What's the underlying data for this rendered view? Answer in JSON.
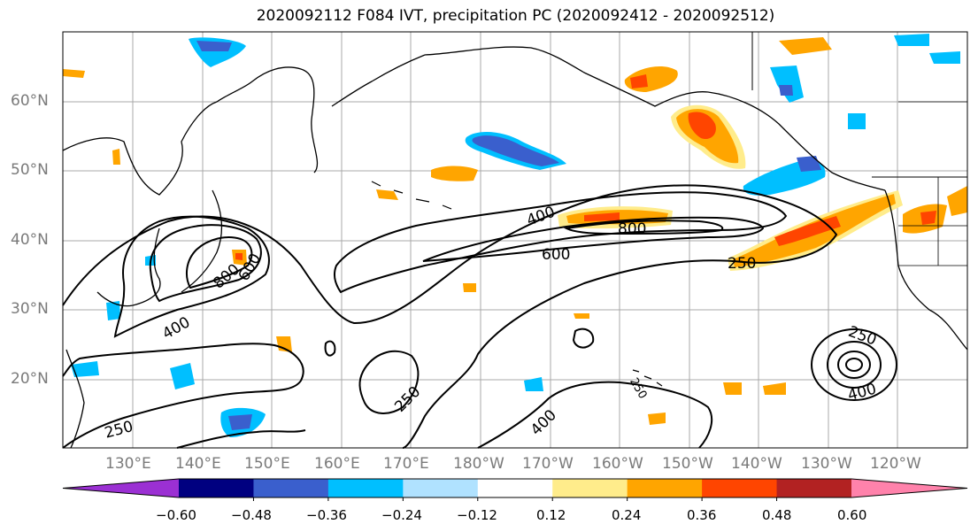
{
  "title": "2020092112 F084 IVT, precipitation PC (2020092412 - 2020092512)",
  "lat_labels": [
    "60°N",
    "50°N",
    "40°N",
    "30°N",
    "20°N"
  ],
  "lon_labels": [
    "130°E",
    "140°E",
    "150°E",
    "160°E",
    "170°E",
    "180°W",
    "170°W",
    "160°W",
    "150°W",
    "140°W",
    "130°W",
    "120°W"
  ],
  "colorbar": {
    "ticks": [
      "−0.60",
      "−0.48",
      "−0.36",
      "−0.24",
      "−0.12",
      "0.12",
      "0.24",
      "0.36",
      "0.48",
      "0.60"
    ],
    "colors": [
      "#9b30d3",
      "#000080",
      "#3a5fcd",
      "#00bfff",
      "#b0e2ff",
      "#ffffff",
      "#ffec8b",
      "#ffa500",
      "#ff4500",
      "#b22222",
      "#ff82ab"
    ]
  },
  "contour_labels": [
    "400",
    "800",
    "600",
    "250",
    "800",
    "600",
    "400",
    "250",
    "250",
    "400",
    "400",
    "250",
    "250"
  ],
  "palette": {
    "orange": "#ffa500",
    "red": "#ff4500",
    "yellow": "#ffec8b",
    "blue": "#00bfff",
    "darkblue": "#3a5fcd",
    "purple": "#8a2be2",
    "grid": "#a8a8a8",
    "coast": "#000000"
  }
}
